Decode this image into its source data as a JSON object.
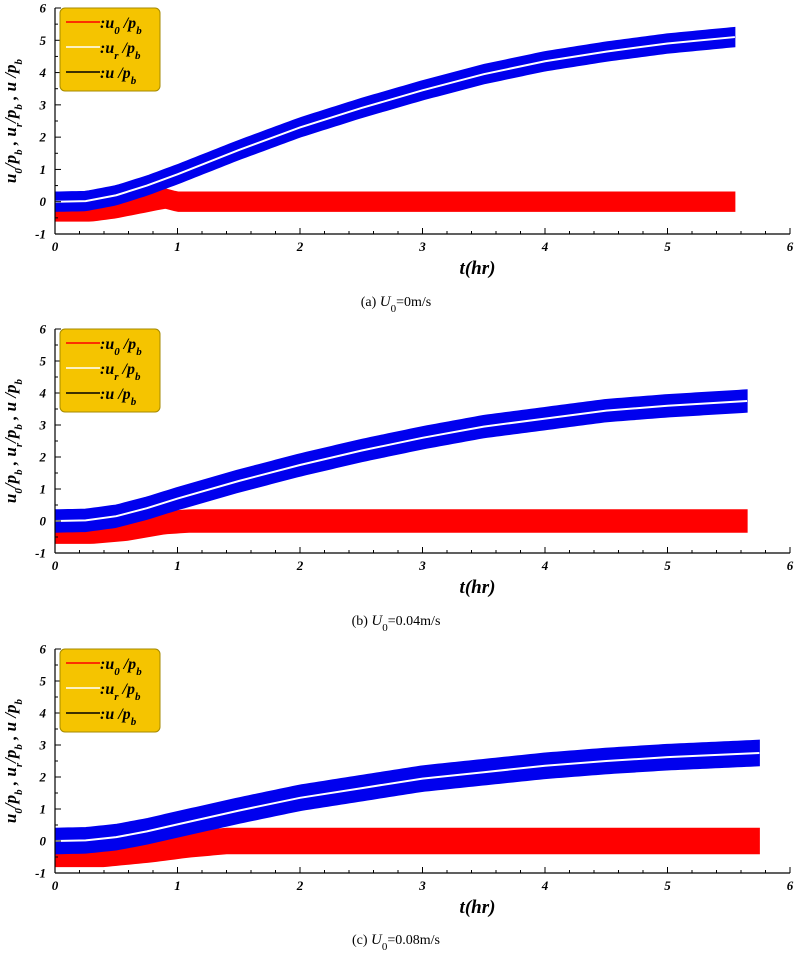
{
  "chart_data": [
    {
      "type": "line",
      "caption_prefix": "(a)",
      "caption_symbol": "U",
      "caption_sub": "0",
      "caption_rest": "=0m/s",
      "xlabel": "t(hr)",
      "ylabel": "u0/pb , ur/pb , u/pb",
      "xlim": [
        0,
        6
      ],
      "ylim": [
        -1,
        6
      ],
      "xticks": [
        "0",
        "1",
        "2",
        "3",
        "4",
        "5",
        "6"
      ],
      "yticks": [
        "-1",
        "0",
        "1",
        "2",
        "3",
        "4",
        "5",
        "6"
      ],
      "legend": [
        {
          "name": "u0/pb",
          "main": "u",
          "sub": "0",
          "color": "#ff0000"
        },
        {
          "name": "ur/pb",
          "main": "u",
          "sub": "r",
          "color": "#ffffff"
        },
        {
          "name": "u/pb",
          "main": "u",
          "sub": "",
          "color": "#000000"
        }
      ],
      "series": [
        {
          "name": "u0/pb",
          "color": "#ff0000",
          "band_halfwidth": 0.3,
          "x": [
            0,
            0.3,
            0.5,
            0.7,
            0.9,
            1.0,
            1.2,
            5.55
          ],
          "y": [
            -0.3,
            -0.3,
            -0.2,
            -0.05,
            0.1,
            0.0,
            0.0,
            0.0
          ]
        },
        {
          "name": "ur/pb",
          "color": "#ffffff",
          "x": [
            0,
            0.25,
            0.5,
            0.75,
            1.0,
            1.5,
            2.0,
            2.5,
            3.0,
            3.5,
            4.0,
            4.5,
            5.0,
            5.55
          ],
          "y": [
            0.0,
            0.02,
            0.2,
            0.5,
            0.85,
            1.6,
            2.3,
            2.9,
            3.45,
            3.95,
            4.35,
            4.65,
            4.9,
            5.1
          ]
        },
        {
          "name": "u/pb",
          "color": "#0000ee",
          "band_halfwidth": 0.3,
          "x": [
            0,
            0.25,
            0.5,
            0.75,
            1.0,
            1.5,
            2.0,
            2.5,
            3.0,
            3.5,
            4.0,
            4.5,
            5.0,
            5.55
          ],
          "y": [
            0.0,
            0.02,
            0.2,
            0.5,
            0.85,
            1.6,
            2.3,
            2.9,
            3.45,
            3.95,
            4.35,
            4.65,
            4.9,
            5.1
          ]
        }
      ]
    },
    {
      "type": "line",
      "caption_prefix": "(b)",
      "caption_symbol": "U",
      "caption_sub": "0",
      "caption_rest": "=0.04m/s",
      "xlabel": "t(hr)",
      "ylabel": "u0/pb , ur/pb , u/pb",
      "xlim": [
        0,
        6
      ],
      "ylim": [
        -1,
        6
      ],
      "xticks": [
        "0",
        "1",
        "2",
        "3",
        "4",
        "5",
        "6"
      ],
      "yticks": [
        "-1",
        "0",
        "1",
        "2",
        "3",
        "4",
        "5",
        "6"
      ],
      "legend": [
        {
          "name": "u0/pb",
          "main": "u",
          "sub": "0",
          "color": "#ff0000"
        },
        {
          "name": "ur/pb",
          "main": "u",
          "sub": "r",
          "color": "#ffffff"
        },
        {
          "name": "u/pb",
          "main": "u",
          "sub": "",
          "color": "#000000"
        }
      ],
      "series": [
        {
          "name": "u0/pb",
          "color": "#ff0000",
          "band_halfwidth": 0.35,
          "x": [
            0,
            0.3,
            0.6,
            0.9,
            1.1,
            1.3,
            5.65
          ],
          "y": [
            -0.35,
            -0.35,
            -0.25,
            -0.05,
            0.0,
            0.0,
            0.0
          ]
        },
        {
          "name": "ur/pb",
          "color": "#ffffff",
          "x": [
            0,
            0.25,
            0.5,
            0.75,
            1.0,
            1.5,
            2.0,
            2.5,
            3.0,
            3.5,
            4.0,
            4.5,
            5.0,
            5.65
          ],
          "y": [
            0.0,
            0.02,
            0.15,
            0.4,
            0.7,
            1.25,
            1.75,
            2.2,
            2.6,
            2.95,
            3.2,
            3.45,
            3.6,
            3.75
          ]
        },
        {
          "name": "u/pb",
          "color": "#0000ee",
          "band_halfwidth": 0.35,
          "x": [
            0,
            0.25,
            0.5,
            0.75,
            1.0,
            1.5,
            2.0,
            2.5,
            3.0,
            3.5,
            4.0,
            4.5,
            5.0,
            5.65
          ],
          "y": [
            0.0,
            0.02,
            0.15,
            0.4,
            0.7,
            1.25,
            1.75,
            2.2,
            2.6,
            2.95,
            3.2,
            3.45,
            3.6,
            3.75
          ]
        }
      ]
    },
    {
      "type": "line",
      "caption_prefix": "(c)",
      "caption_symbol": "U",
      "caption_sub": "0",
      "caption_rest": "=0.08m/s",
      "xlabel": "t(hr)",
      "ylabel": "u0/pb , ur/pb , u/pb",
      "xlim": [
        0,
        6
      ],
      "ylim": [
        -1,
        6
      ],
      "xticks": [
        "0",
        "1",
        "2",
        "3",
        "4",
        "5",
        "6"
      ],
      "yticks": [
        "-1",
        "0",
        "1",
        "2",
        "3",
        "4",
        "5",
        "6"
      ],
      "legend": [
        {
          "name": "u0/pb",
          "main": "u",
          "sub": "0",
          "color": "#ff0000"
        },
        {
          "name": "ur/pb",
          "main": "u",
          "sub": "r",
          "color": "#ffffff"
        },
        {
          "name": "u/pb",
          "main": "u",
          "sub": "",
          "color": "#000000"
        }
      ],
      "series": [
        {
          "name": "u0/pb",
          "color": "#ff0000",
          "band_halfwidth": 0.4,
          "x": [
            0,
            0.4,
            0.8,
            1.1,
            1.4,
            1.6,
            5.75
          ],
          "y": [
            -0.4,
            -0.4,
            -0.25,
            -0.1,
            0.0,
            0.0,
            0.0
          ]
        },
        {
          "name": "ur/pb",
          "color": "#ffffff",
          "x": [
            0,
            0.25,
            0.5,
            0.75,
            1.0,
            1.5,
            2.0,
            2.5,
            3.0,
            3.5,
            4.0,
            4.5,
            5.0,
            5.75
          ],
          "y": [
            0.0,
            0.02,
            0.12,
            0.3,
            0.52,
            0.95,
            1.35,
            1.65,
            1.95,
            2.15,
            2.35,
            2.5,
            2.62,
            2.75
          ]
        },
        {
          "name": "u/pb",
          "color": "#0000ee",
          "band_halfwidth": 0.4,
          "x": [
            0,
            0.25,
            0.5,
            0.75,
            1.0,
            1.5,
            2.0,
            2.5,
            3.0,
            3.5,
            4.0,
            4.5,
            5.0,
            5.75
          ],
          "y": [
            0.0,
            0.02,
            0.12,
            0.3,
            0.52,
            0.95,
            1.35,
            1.65,
            1.95,
            2.15,
            2.35,
            2.5,
            2.62,
            2.75
          ]
        }
      ]
    }
  ]
}
